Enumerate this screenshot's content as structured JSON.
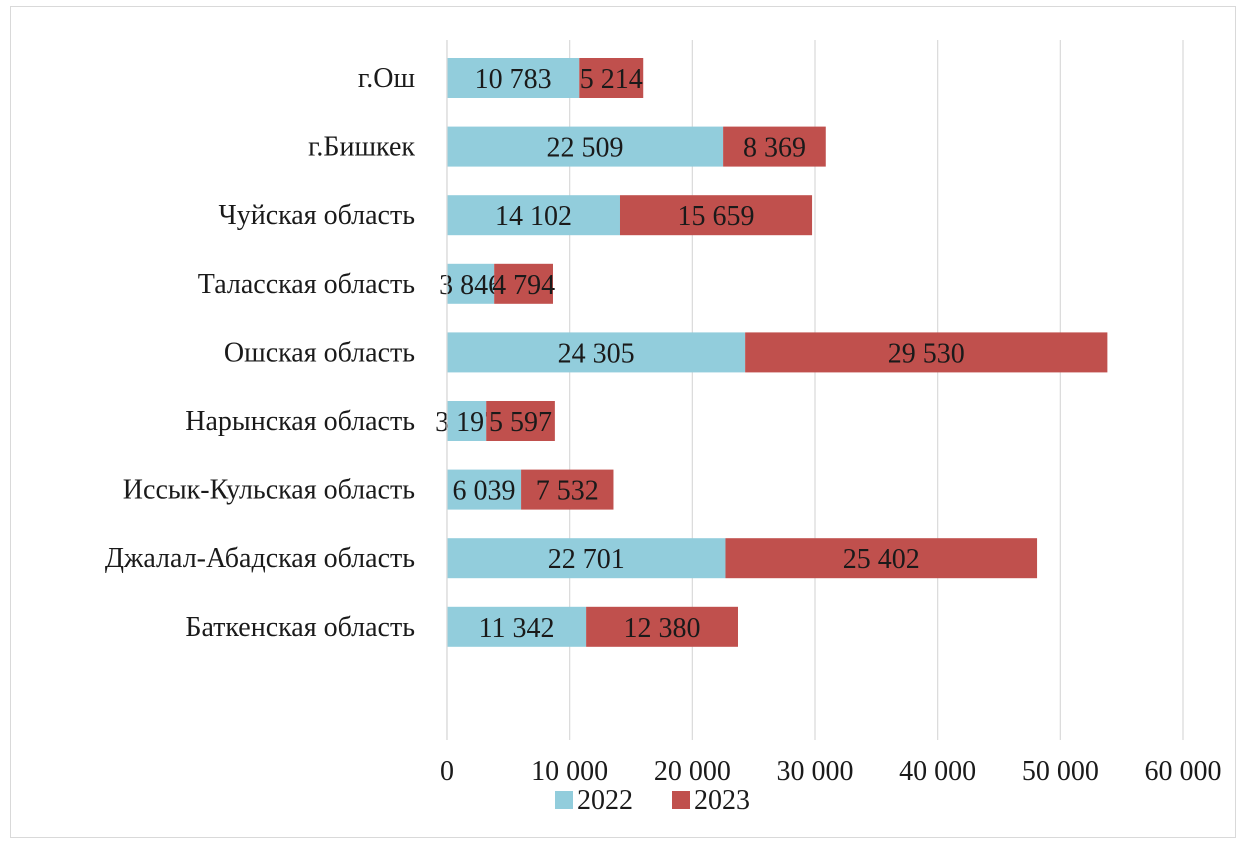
{
  "chart_data": {
    "type": "bar",
    "orientation": "horizontal",
    "stacked": true,
    "categories": [
      "г.Ош",
      "г.Бишкек",
      "Чуйская область",
      "Таласская область",
      "Ошская область",
      "Нарынская область",
      "Иссык-Кульская область",
      "Джалал-Абадская область",
      "Баткенская область"
    ],
    "series": [
      {
        "name": "2022",
        "color": "#92cddc",
        "values": [
          10783,
          22509,
          14102,
          3846,
          24305,
          3197,
          6039,
          22701,
          11342
        ],
        "labels": [
          "10 783",
          "22 509",
          "14 102",
          "3 846",
          "24 305",
          "3 197",
          "6 039",
          "22 701",
          "11 342"
        ]
      },
      {
        "name": "2023",
        "color": "#c0504d",
        "values": [
          5214,
          8369,
          15659,
          4794,
          29530,
          5597,
          7532,
          25402,
          12380
        ],
        "labels": [
          "5 214",
          "8 369",
          "15 659",
          "4 794",
          "29 530",
          "5 597",
          "7 532",
          "25 402",
          "12 380"
        ]
      }
    ],
    "xlim": [
      0,
      60000
    ],
    "xticks": [
      0,
      10000,
      20000,
      30000,
      40000,
      50000,
      60000
    ],
    "xtick_labels": [
      "0",
      "10 000",
      "20 000",
      "30 000",
      "40 000",
      "50 000",
      "60 000"
    ],
    "grid": true,
    "gridline_color": "#d9d9d9",
    "legend_position": "bottom",
    "title": "",
    "xlabel": "",
    "ylabel": ""
  }
}
